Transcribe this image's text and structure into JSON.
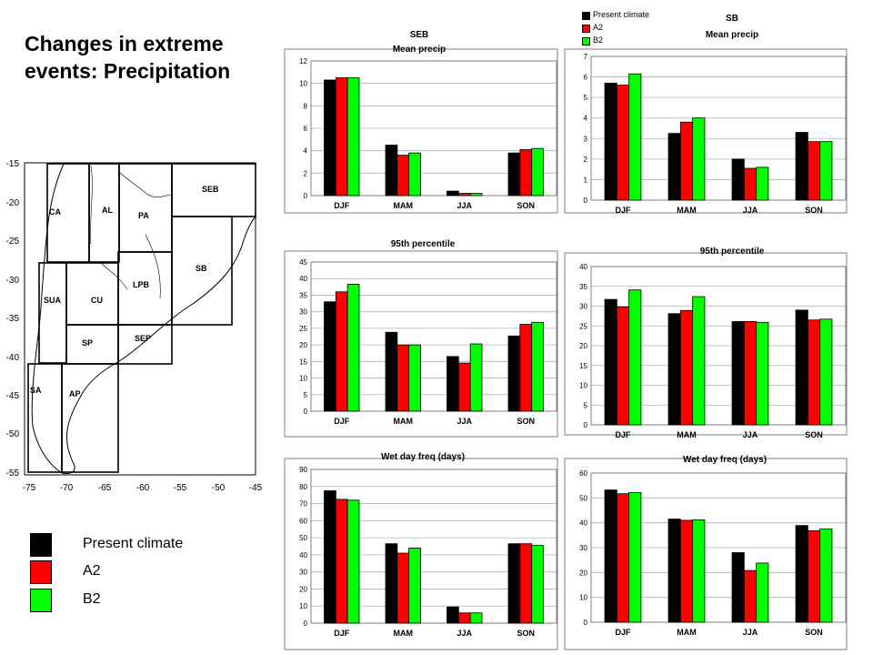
{
  "title_lines": [
    "Changes in extreme",
    "events: Precipitation"
  ],
  "legend": [
    {
      "label": "Present climate",
      "color": "#000000"
    },
    {
      "label": "A2",
      "color": "#ff0000"
    },
    {
      "label": "B2",
      "color": "#00ff00"
    }
  ],
  "mini_legend": [
    {
      "label": "Present climate",
      "color": "#000000"
    },
    {
      "label": "A2",
      "color": "#ff0000"
    },
    {
      "label": "B2",
      "color": "#00ff00"
    }
  ],
  "map": {
    "regions": [
      "CA",
      "AL",
      "PA",
      "SEB",
      "SB",
      "SUA",
      "CU",
      "LPB",
      "SP",
      "SEP",
      "SA",
      "AP"
    ],
    "lat_ticks": [
      "-15",
      "-20",
      "-25",
      "-30",
      "-35",
      "-40",
      "-45",
      "-50",
      "-55"
    ],
    "lon_ticks": [
      "-75",
      "-70",
      "-65",
      "-60",
      "-55",
      "-50",
      "-45"
    ]
  },
  "chart_data": [
    {
      "type": "bar",
      "region": "SEB",
      "title": "Mean precip",
      "categories": [
        "DJF",
        "MAM",
        "JJA",
        "SON"
      ],
      "series": [
        {
          "name": "Present climate",
          "values": [
            10.3,
            4.5,
            0.4,
            3.8
          ]
        },
        {
          "name": "A2",
          "values": [
            10.5,
            3.6,
            0.2,
            4.1
          ]
        },
        {
          "name": "B2",
          "values": [
            10.5,
            3.8,
            0.2,
            4.2
          ]
        }
      ],
      "yticks": [
        "0",
        "2",
        "4",
        "6",
        "8",
        "10",
        "12"
      ],
      "ylim": [
        0,
        12
      ]
    },
    {
      "type": "bar",
      "region": "SB",
      "title": "Mean precip",
      "categories": [
        "DJF",
        "MAM",
        "JJA",
        "SON"
      ],
      "series": [
        {
          "name": "Present climate",
          "values": [
            5.7,
            3.25,
            2.0,
            3.3
          ]
        },
        {
          "name": "A2",
          "values": [
            5.6,
            3.8,
            1.55,
            2.85
          ]
        },
        {
          "name": "B2",
          "values": [
            6.15,
            4.0,
            1.6,
            2.85
          ]
        }
      ],
      "yticks": [
        "0",
        "1",
        "2",
        "3",
        "4",
        "5",
        "6",
        "7"
      ],
      "ylim": [
        0,
        7
      ]
    },
    {
      "type": "bar",
      "title": "95th percentile",
      "categories": [
        "DJF",
        "MAM",
        "JJA",
        "SON"
      ],
      "series": [
        {
          "name": "Present climate",
          "values": [
            33,
            23.8,
            16.5,
            22.7
          ]
        },
        {
          "name": "A2",
          "values": [
            36,
            20,
            14.5,
            26.2
          ]
        },
        {
          "name": "B2",
          "values": [
            38.3,
            20,
            20.3,
            26.8
          ]
        }
      ],
      "yticks": [
        "0",
        "5",
        "10",
        "15",
        "20",
        "25",
        "30",
        "35",
        "40",
        "45"
      ],
      "ylim": [
        0,
        45
      ]
    },
    {
      "type": "bar",
      "title": "95th percentile",
      "categories": [
        "DJF",
        "MAM",
        "JJA",
        "SON"
      ],
      "series": [
        {
          "name": "Present climate",
          "values": [
            31.7,
            28.1,
            26.1,
            29
          ]
        },
        {
          "name": "A2",
          "values": [
            29.8,
            28.9,
            26.1,
            26.5
          ]
        },
        {
          "name": "B2",
          "values": [
            34.1,
            32.4,
            25.9,
            26.7
          ]
        }
      ],
      "yticks": [
        "0",
        "5",
        "10",
        "15",
        "20",
        "25",
        "30",
        "35",
        "40"
      ],
      "ylim": [
        0,
        40
      ]
    },
    {
      "type": "bar",
      "title": "Wet day freq (days)",
      "categories": [
        "DJF",
        "MAM",
        "JJA",
        "SON"
      ],
      "series": [
        {
          "name": "Present climate",
          "values": [
            77.5,
            46.5,
            9.5,
            46.5
          ]
        },
        {
          "name": "A2",
          "values": [
            72.5,
            41,
            6,
            46.5
          ]
        },
        {
          "name": "B2",
          "values": [
            72,
            44,
            6,
            45.5
          ]
        }
      ],
      "yticks": [
        "0",
        "10",
        "20",
        "30",
        "40",
        "50",
        "60",
        "70",
        "80",
        "90"
      ],
      "ylim": [
        0,
        90
      ]
    },
    {
      "type": "bar",
      "title": "Wet day freq (days)",
      "categories": [
        "DJF",
        "MAM",
        "JJA",
        "SON"
      ],
      "series": [
        {
          "name": "Present climate",
          "values": [
            53.2,
            41.5,
            28,
            38.9
          ]
        },
        {
          "name": "A2",
          "values": [
            51.7,
            41,
            20.8,
            36.8
          ]
        },
        {
          "name": "B2",
          "values": [
            52.2,
            41.2,
            23.8,
            37.5
          ]
        }
      ],
      "yticks": [
        "0",
        "10",
        "20",
        "30",
        "40",
        "50",
        "60"
      ],
      "ylim": [
        0,
        60
      ]
    }
  ]
}
